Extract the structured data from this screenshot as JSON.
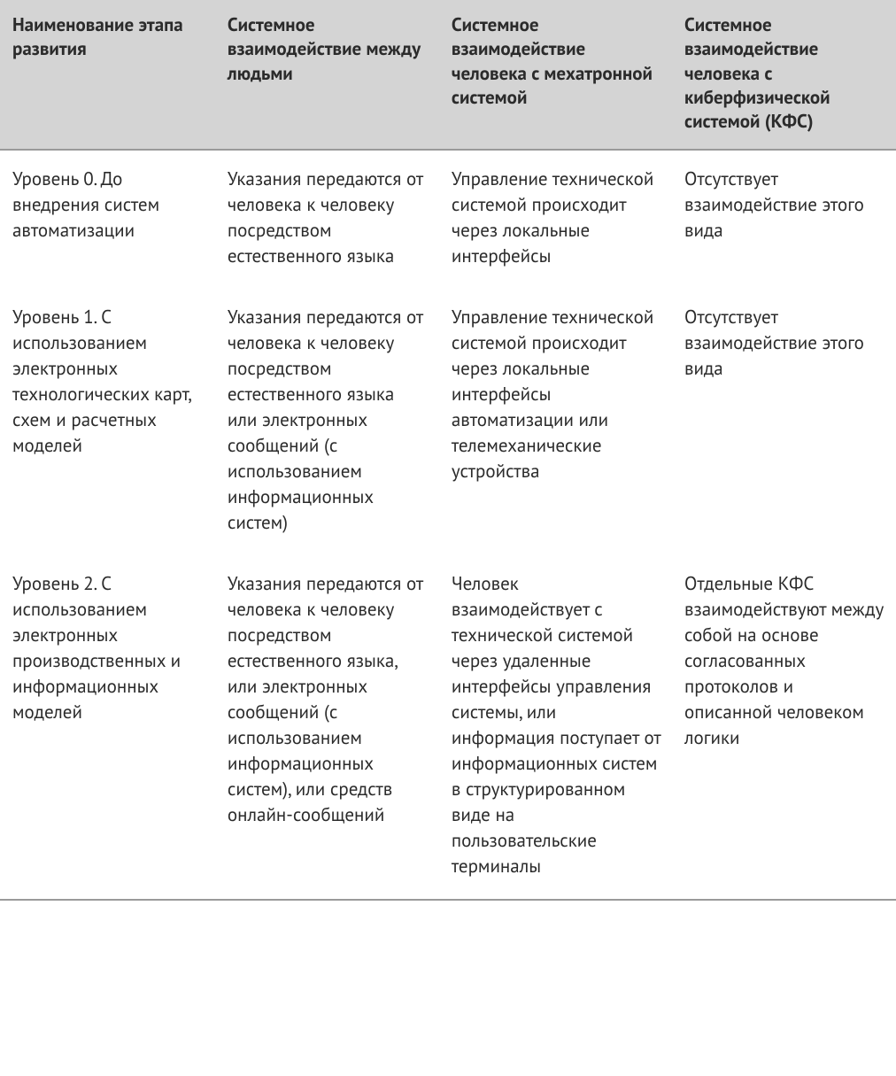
{
  "table": {
    "type": "table",
    "background_color": "#ffffff",
    "header_background_color": "#d4d4d4",
    "header_border_color": "#9a9a9a",
    "footer_border_color": "#9a9a9a",
    "text_color": "#2b2b2b",
    "header_font_weight": 700,
    "body_font_weight": 400,
    "font_size_pt": 16,
    "line_height": 1.38,
    "column_widths_pct": [
      24,
      25,
      26,
      25
    ],
    "columns": [
      "Наименование этапа развития",
      "Системное взаимодействие между людьми",
      "Системное взаимодействие человека с мехатронной системой",
      "Системное взаимодействие человека с киберфизической системой (КФС)"
    ],
    "rows": [
      {
        "c0": "Уровень 0. До внедрения систем автоматизации",
        "c1": "Указания передаются от человека к человеку посредством естественного языка",
        "c2": "Управление технической системой происходит через локальные интерфейсы",
        "c3": "Отсутствует взаимодействие этого вида"
      },
      {
        "c0": "Уровень 1. С использованием электронных технологических карт, схем и расчетных моделей",
        "c1": "Указания передаются от человека к человеку посредством естественного языка или электронных сообщений (с использованием информационных систем)",
        "c2": "Управление технической системой происходит через локальные интерфейсы автоматизации или телемеханические устройства",
        "c3": "Отсутствует взаимодействие этого вида"
      },
      {
        "c0": "Уровень 2. С использованием электронных производственных и информационных моделей",
        "c1": "Указания передаются от человека к человеку посредством естественного языка, или электронных сообщений (с использованием информационных систем), или средств онлайн-сообщений",
        "c2": "Человек взаимодействует с технической системой через удаленные интерфейсы управления системы, или информация поступает от информационных систем в структури­рованном виде на пользовательские терминалы",
        "c3": "Отдельные КФС взаимодействуют между собой на основе согласованных протоколов и описанной человеком логики"
      }
    ]
  }
}
